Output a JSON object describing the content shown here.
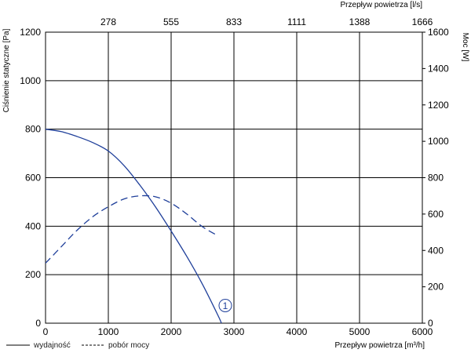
{
  "chart_data": {
    "type": "line",
    "title": "",
    "xlabel_bottom": "Przepływ powietrza [m³/h]",
    "xlabel_top": "Przepływ powietrza [l/s]",
    "ylabel_left": "Ciśnienie statyczne [Pa]",
    "ylabel_right": "Moc [W]",
    "x_ticks_bottom": [
      0,
      1000,
      2000,
      3000,
      4000,
      5000,
      6000
    ],
    "x_ticks_top": [
      {
        "x": 1000,
        "label": "278"
      },
      {
        "x": 2000,
        "label": "555"
      },
      {
        "x": 3000,
        "label": "833"
      },
      {
        "x": 4000,
        "label": "1111"
      },
      {
        "x": 5000,
        "label": "1388"
      },
      {
        "x": 6000,
        "label": "1666"
      }
    ],
    "y_ticks_left": [
      0,
      200,
      400,
      600,
      800,
      1000,
      1200
    ],
    "y_ticks_right": [
      0,
      200,
      400,
      600,
      800,
      1000,
      1200,
      1400,
      1600
    ],
    "xlim": [
      0,
      6000
    ],
    "ylim_left": [
      0,
      1200
    ],
    "ylim_right": [
      0,
      1600
    ],
    "grid": true,
    "legend_position": "bottom-left",
    "series": [
      {
        "name": "wydajność",
        "axis": "left",
        "style": "solid",
        "color": "#1f3f9a",
        "points": [
          [
            0,
            800
          ],
          [
            250,
            790
          ],
          [
            500,
            770
          ],
          [
            750,
            745
          ],
          [
            1000,
            710
          ],
          [
            1250,
            650
          ],
          [
            1500,
            570
          ],
          [
            1750,
            480
          ],
          [
            2000,
            380
          ],
          [
            2250,
            275
          ],
          [
            2500,
            160
          ],
          [
            2750,
            30
          ],
          [
            2800,
            0
          ]
        ]
      },
      {
        "name": "pobór mocy",
        "axis": "right",
        "style": "dashed",
        "color": "#1f3f9a",
        "points": [
          [
            0,
            330
          ],
          [
            250,
            420
          ],
          [
            500,
            510
          ],
          [
            750,
            585
          ],
          [
            1000,
            640
          ],
          [
            1250,
            683
          ],
          [
            1500,
            700
          ],
          [
            1750,
            695
          ],
          [
            2000,
            660
          ],
          [
            2250,
            600
          ],
          [
            2500,
            530
          ],
          [
            2750,
            480
          ]
        ]
      }
    ],
    "annotations": [
      {
        "text": "1",
        "x": 2800,
        "y": 60
      }
    ]
  },
  "legend": {
    "items": [
      {
        "label": "wydajność",
        "style": "solid"
      },
      {
        "label": "pobór mocy",
        "style": "dashed"
      }
    ]
  }
}
